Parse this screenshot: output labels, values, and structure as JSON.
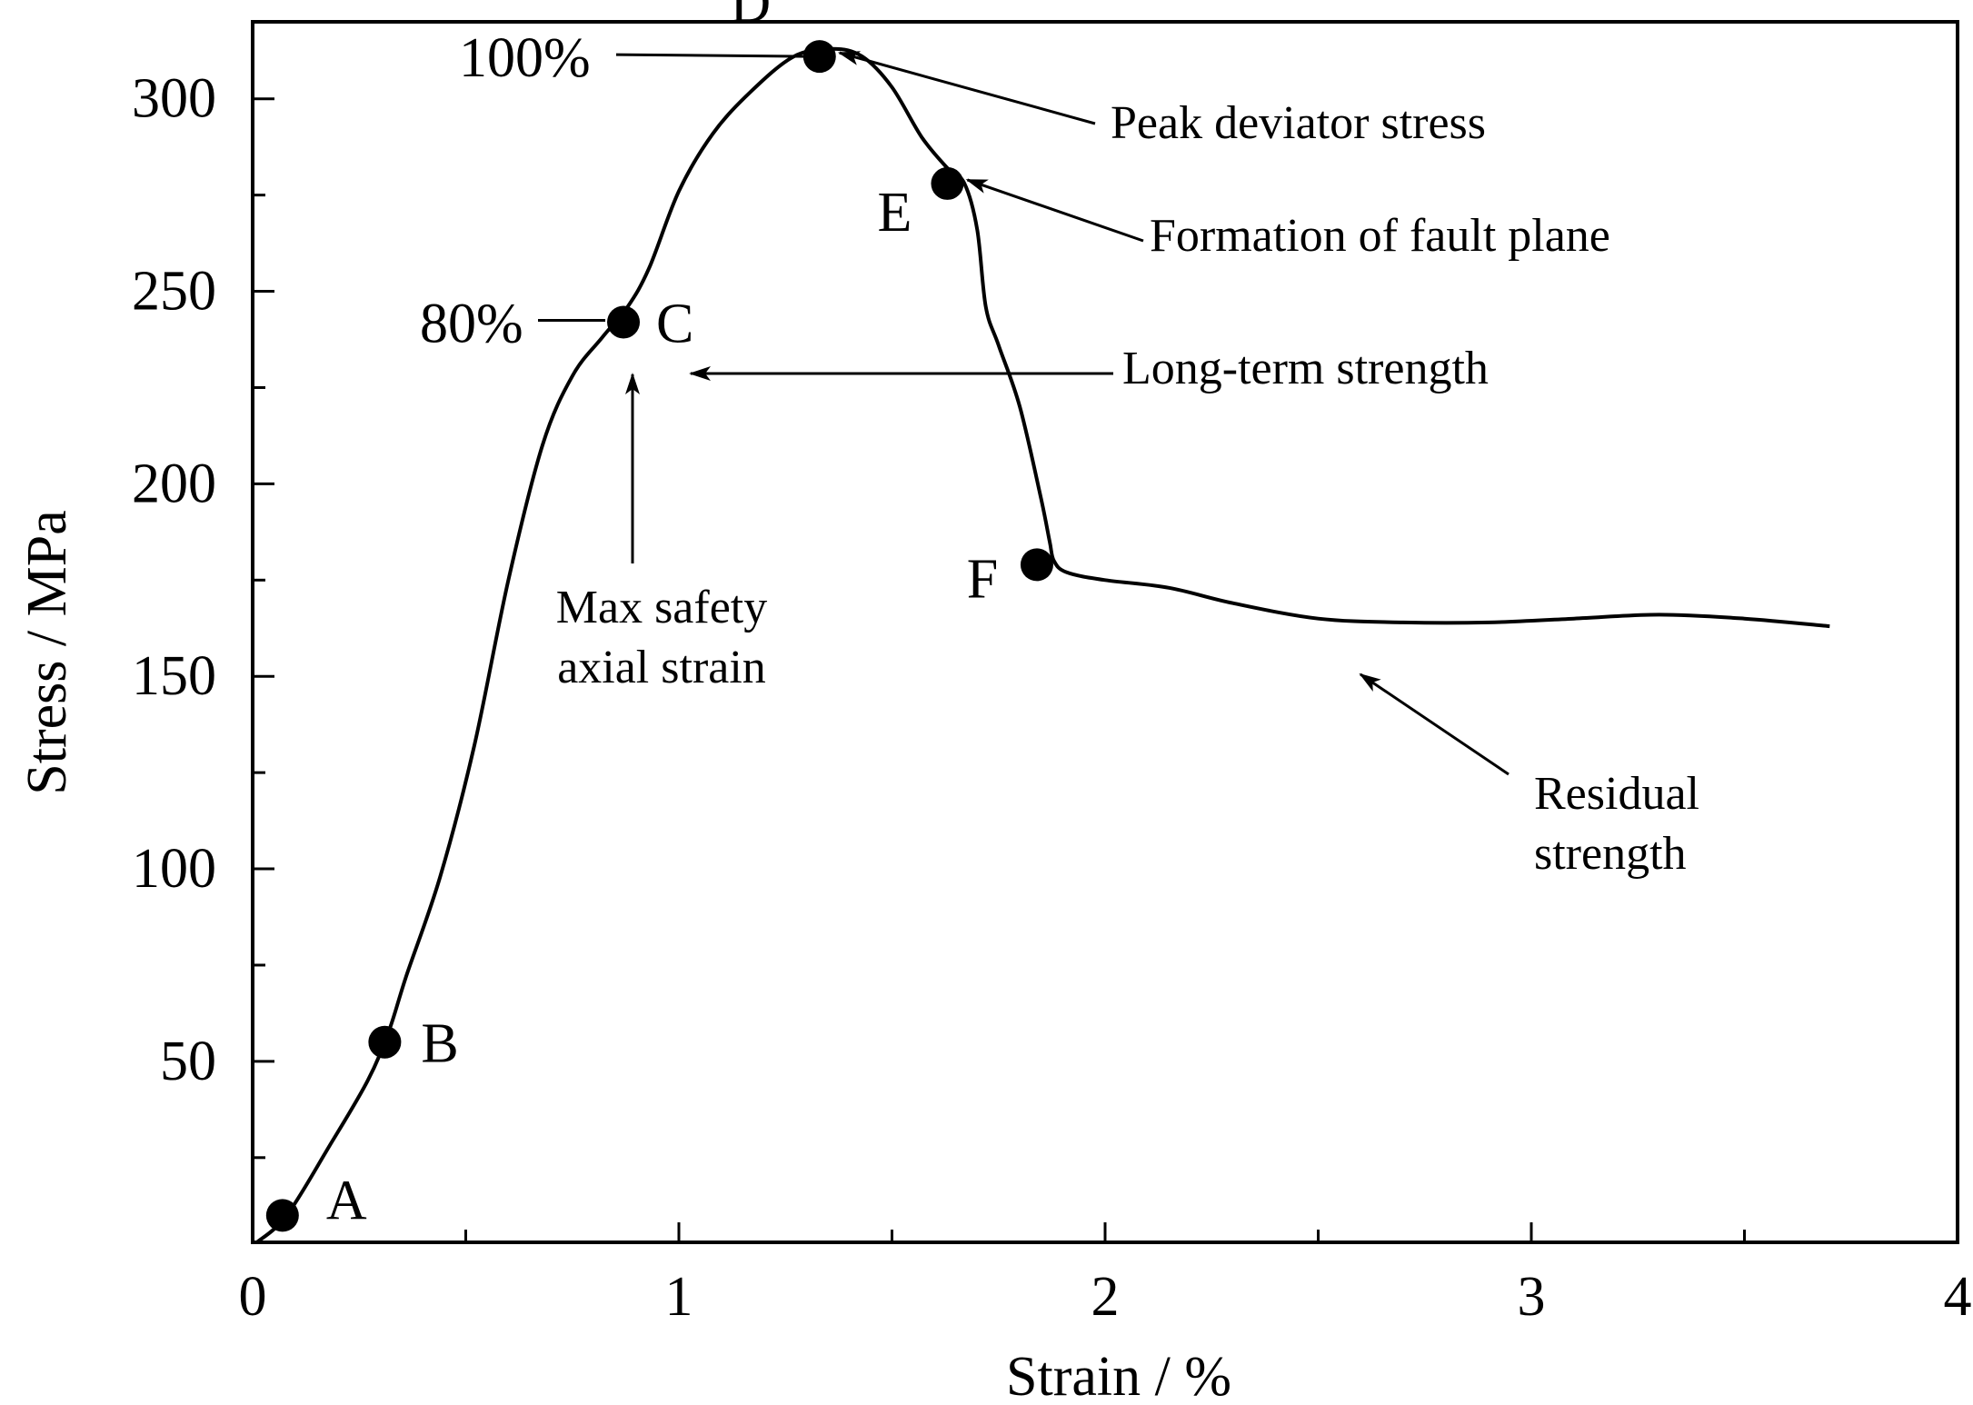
{
  "chart_data": {
    "type": "line",
    "xlabel": "Strain / %",
    "ylabel": "Stress / MPa",
    "xlim": [
      0,
      4
    ],
    "ylim": [
      3,
      320
    ],
    "x_ticks": [
      0,
      1,
      2,
      3,
      4
    ],
    "x_ticks_unlabeled": [
      0.5,
      1.5,
      2.5,
      3.5
    ],
    "y_ticks": [
      50,
      100,
      150,
      200,
      250,
      300
    ],
    "y_ticks_unlabeled": [
      25,
      75,
      125,
      175,
      225,
      275,
      325
    ],
    "grid": false,
    "line_color": "#000000",
    "series": [
      {
        "x": [
          0.01,
          0.08,
          0.18,
          0.27,
          0.32,
          0.36,
          0.44,
          0.52,
          0.6,
          0.68,
          0.75,
          0.82,
          0.88,
          0.93,
          1.0,
          1.08,
          1.17,
          1.27,
          1.36,
          1.43,
          1.5,
          1.57,
          1.63,
          1.67,
          1.7,
          1.72,
          1.75,
          1.8,
          1.85,
          1.87,
          1.88,
          1.91,
          2.0,
          2.15,
          2.3,
          2.5,
          2.7,
          2.9,
          3.1,
          3.3,
          3.5,
          3.7
        ],
        "y": [
          3,
          10,
          28,
          45,
          58,
          72,
          98,
          132,
          175,
          210,
          228,
          238,
          246,
          256,
          276,
          291,
          302,
          311,
          313,
          311,
          303,
          290,
          282,
          278,
          266,
          246,
          236,
          220,
          196,
          185,
          180,
          177,
          175,
          173,
          169,
          165,
          164,
          164,
          165,
          166,
          165,
          163
        ]
      }
    ],
    "points": [
      {
        "label": "A",
        "x": 0.07,
        "y": 10
      },
      {
        "label": "B",
        "x": 0.31,
        "y": 55
      },
      {
        "label": "C",
        "x": 0.87,
        "y": 242
      },
      {
        "label": "D",
        "x": 1.33,
        "y": 311
      },
      {
        "label": "E",
        "x": 1.63,
        "y": 278
      },
      {
        "label": "F",
        "x": 1.84,
        "y": 179
      }
    ],
    "percent_labels": [
      {
        "text": "100%",
        "y": 311
      },
      {
        "text": "80%",
        "y": 242
      }
    ],
    "annotations": [
      {
        "lines": [
          "Peak deviator stress"
        ],
        "target": "D"
      },
      {
        "lines": [
          "Formation of fault plane"
        ],
        "target": "E"
      },
      {
        "lines": [
          "Long-term strength"
        ],
        "target": "C"
      },
      {
        "lines": [
          "Max safety",
          "axial strain"
        ],
        "target": "C"
      },
      {
        "lines": [
          "Residual",
          "strength"
        ],
        "target_x": 2.57,
        "target_y": 164
      }
    ]
  }
}
